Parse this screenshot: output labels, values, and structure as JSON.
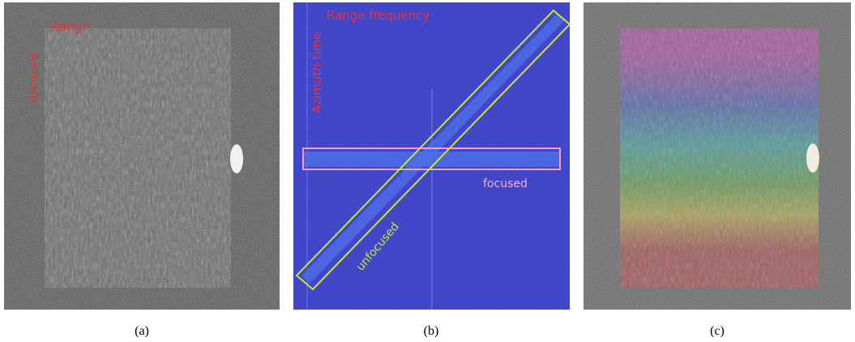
{
  "panels": [
    {
      "caption": "(a)",
      "labels": {
        "range": "Range",
        "azimuth": "Azimuth"
      }
    },
    {
      "caption": "(b)",
      "labels": {
        "range_frequency": "Range frequency",
        "azimuth_time": "Azimuth time",
        "focused": "focused",
        "unfocused": "unfocused"
      }
    },
    {
      "caption": "(c)"
    }
  ]
}
